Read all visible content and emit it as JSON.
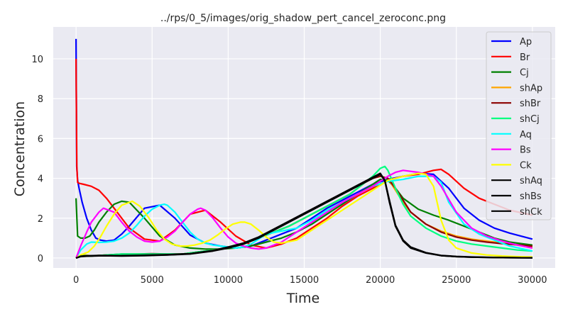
{
  "chart_data": {
    "type": "line",
    "title": "../rps/0_5/images/orig_shadow_pert_cancel_zeroconc.png",
    "xlabel": "Time",
    "ylabel": "Concentration",
    "xlim": [
      -1500,
      31500
    ],
    "ylim": [
      -0.5,
      11.6
    ],
    "xticks": [
      0,
      5000,
      10000,
      15000,
      20000,
      25000,
      30000
    ],
    "yticks": [
      0,
      2,
      4,
      6,
      8,
      10
    ],
    "grid": true,
    "legend_position": "top-right",
    "series": [
      {
        "name": "Ap",
        "color": "#0000ff",
        "x": [
          0,
          40,
          100,
          200,
          400,
          700,
          1000,
          1300,
          1600,
          2000,
          2500,
          3000,
          3500,
          4500,
          5500,
          6500,
          7500,
          8500,
          9500,
          10500,
          11500,
          12500,
          13500,
          14500,
          15500,
          16500,
          17500,
          18500,
          19500,
          20500,
          21500,
          22500,
          23500,
          24500,
          25500,
          26500,
          27500,
          28500,
          30000
        ],
        "y": [
          11.0,
          4.6,
          3.9,
          3.5,
          2.8,
          2.0,
          1.4,
          1.0,
          0.9,
          0.85,
          0.9,
          1.2,
          1.6,
          2.5,
          2.65,
          2.0,
          1.15,
          0.75,
          0.6,
          0.5,
          0.6,
          0.9,
          1.2,
          1.5,
          2.0,
          2.5,
          2.9,
          3.3,
          3.7,
          3.95,
          4.1,
          4.25,
          4.2,
          3.5,
          2.5,
          1.9,
          1.5,
          1.25,
          0.95
        ]
      },
      {
        "name": "Br",
        "color": "#ff0000",
        "x": [
          0,
          50,
          100,
          200,
          500,
          1000,
          1500,
          2000,
          2500,
          3000,
          3500,
          4500,
          5500,
          6500,
          7500,
          8500,
          9500,
          10500,
          11500,
          12500,
          13500,
          14500,
          15500,
          16500,
          17500,
          18500,
          19500,
          20500,
          21500,
          22500,
          23500,
          24000,
          24500,
          25500,
          26500,
          27500,
          28500,
          30000
        ],
        "y": [
          10.0,
          4.6,
          3.8,
          3.75,
          3.7,
          3.6,
          3.4,
          3.0,
          2.5,
          2.0,
          1.5,
          0.95,
          0.85,
          1.4,
          2.2,
          2.4,
          1.8,
          1.1,
          0.65,
          0.5,
          0.7,
          1.0,
          1.5,
          2.0,
          2.6,
          3.1,
          3.5,
          3.9,
          4.1,
          4.2,
          4.4,
          4.45,
          4.2,
          3.5,
          3.0,
          2.7,
          2.4,
          2.15
        ]
      },
      {
        "name": "Cj",
        "color": "#008000",
        "x": [
          0,
          100,
          300,
          600,
          900,
          1200,
          1500,
          2000,
          2500,
          3000,
          3500,
          4500,
          5500,
          6500,
          7500,
          8500,
          9500,
          10500,
          11500,
          12500,
          13500,
          14500,
          15500,
          16500,
          17500,
          18500,
          19500,
          20000,
          20500,
          21000,
          21500,
          22500,
          23500,
          24500,
          25500,
          26500,
          27500,
          28500,
          30000
        ],
        "y": [
          3.0,
          1.1,
          1.0,
          1.0,
          1.1,
          1.4,
          1.8,
          2.3,
          2.7,
          2.85,
          2.8,
          2.0,
          1.1,
          0.65,
          0.5,
          0.45,
          0.45,
          0.5,
          0.6,
          0.8,
          1.0,
          1.3,
          1.7,
          2.2,
          2.7,
          3.2,
          3.7,
          3.95,
          3.9,
          3.5,
          3.0,
          2.45,
          2.15,
          1.9,
          1.6,
          1.3,
          1.0,
          0.8,
          0.65
        ]
      },
      {
        "name": "shAp",
        "color": "#ffa500",
        "x": [
          0,
          300,
          600,
          1000,
          2000,
          3000,
          4000,
          5000,
          6000,
          7000,
          8000,
          9000,
          10000,
          11000,
          12000,
          13000,
          14000,
          15000,
          16000,
          17000,
          18000,
          18500,
          19000,
          19500,
          20000,
          20500,
          21000,
          21500,
          22000,
          23000,
          24000,
          25000,
          26000,
          27000,
          28000,
          29000,
          30000
        ],
        "y": [
          0.0,
          0.12,
          0.15,
          0.1,
          0.15,
          0.18,
          0.2,
          0.2,
          0.18,
          0.2,
          0.3,
          0.4,
          0.5,
          0.7,
          1.0,
          1.3,
          1.6,
          2.0,
          2.4,
          2.8,
          3.2,
          3.5,
          3.8,
          4.0,
          4.1,
          4.0,
          3.4,
          2.8,
          2.3,
          1.7,
          1.35,
          1.1,
          0.95,
          0.85,
          0.75,
          0.65,
          0.55
        ]
      },
      {
        "name": "shBr",
        "color": "#8b0000",
        "x": [
          0,
          300,
          600,
          1000,
          2000,
          3000,
          4000,
          5000,
          6000,
          7000,
          8000,
          9000,
          10000,
          11000,
          12000,
          13000,
          14000,
          15000,
          16000,
          17000,
          18000,
          18500,
          19000,
          19500,
          20000,
          20500,
          21000,
          21500,
          22000,
          23000,
          24000,
          25000,
          26000,
          27000,
          28000,
          29000,
          30000
        ],
        "y": [
          0.0,
          0.1,
          0.12,
          0.1,
          0.15,
          0.2,
          0.2,
          0.22,
          0.2,
          0.2,
          0.3,
          0.4,
          0.5,
          0.7,
          1.0,
          1.3,
          1.6,
          2.0,
          2.4,
          2.8,
          3.2,
          3.5,
          3.8,
          4.0,
          4.1,
          4.0,
          3.5,
          2.9,
          2.3,
          1.7,
          1.3,
          1.05,
          0.9,
          0.8,
          0.72,
          0.66,
          0.6
        ]
      },
      {
        "name": "shCj",
        "color": "#00ff7f",
        "x": [
          0,
          300,
          600,
          1000,
          2000,
          3000,
          4000,
          5000,
          6000,
          7000,
          8000,
          9000,
          10000,
          11000,
          12000,
          13000,
          14000,
          15000,
          16000,
          17000,
          18000,
          18500,
          19000,
          19500,
          20000,
          20300,
          20500,
          21000,
          21500,
          22000,
          23000,
          24000,
          25000,
          26000,
          27000,
          28000,
          29000,
          30000
        ],
        "y": [
          0.0,
          0.1,
          0.12,
          0.1,
          0.15,
          0.2,
          0.2,
          0.2,
          0.2,
          0.2,
          0.3,
          0.4,
          0.5,
          0.7,
          1.0,
          1.3,
          1.6,
          2.0,
          2.4,
          2.8,
          3.2,
          3.5,
          3.8,
          4.1,
          4.5,
          4.6,
          4.4,
          3.5,
          2.7,
          2.1,
          1.5,
          1.1,
          0.85,
          0.7,
          0.6,
          0.5,
          0.4,
          0.35
        ]
      },
      {
        "name": "Aq",
        "color": "#00ffff",
        "x": [
          0,
          300,
          700,
          1000,
          1500,
          2000,
          2500,
          3000,
          3500,
          4000,
          4500,
          5000,
          5500,
          5800,
          6000,
          6500,
          7000,
          7500,
          8000,
          8500,
          9000,
          9500,
          10000,
          10500,
          11000,
          11500,
          12000,
          12500,
          13500,
          14500,
          15500,
          16500,
          17500,
          18500,
          19500,
          20500,
          21500,
          22500,
          23500,
          24000,
          24500,
          25500,
          26500,
          27500,
          28500,
          30000
        ],
        "y": [
          0.0,
          0.4,
          0.7,
          0.8,
          0.78,
          0.8,
          0.85,
          1.0,
          1.25,
          1.65,
          2.1,
          2.45,
          2.65,
          2.7,
          2.65,
          2.3,
          1.8,
          1.3,
          0.95,
          0.75,
          0.65,
          0.6,
          0.55,
          0.5,
          0.55,
          0.7,
          0.95,
          1.2,
          1.35,
          1.5,
          1.9,
          2.4,
          2.8,
          3.2,
          3.6,
          3.85,
          3.95,
          4.1,
          4.1,
          3.8,
          2.8,
          1.7,
          1.2,
          0.9,
          0.6,
          0.35
        ]
      },
      {
        "name": "Bs",
        "color": "#ff00ff",
        "x": [
          0,
          300,
          700,
          1000,
          1500,
          1800,
          2500,
          3000,
          3500,
          4000,
          4500,
          5000,
          5500,
          6000,
          6500,
          7000,
          7500,
          8000,
          8200,
          8500,
          9000,
          9500,
          10000,
          10500,
          11000,
          11500,
          12000,
          12500,
          13500,
          14500,
          15500,
          16500,
          17500,
          18500,
          19500,
          20500,
          21000,
          21500,
          22500,
          23000,
          23500,
          24000,
          25000,
          26000,
          27000,
          28000,
          29000,
          30000
        ],
        "y": [
          0.0,
          0.6,
          1.3,
          1.8,
          2.3,
          2.5,
          2.3,
          1.8,
          1.35,
          1.05,
          0.85,
          0.8,
          0.85,
          1.05,
          1.35,
          1.8,
          2.2,
          2.45,
          2.5,
          2.4,
          2.0,
          1.5,
          1.05,
          0.75,
          0.6,
          0.5,
          0.45,
          0.5,
          0.8,
          1.3,
          1.8,
          2.3,
          2.8,
          3.2,
          3.6,
          4.1,
          4.3,
          4.4,
          4.3,
          4.2,
          4.1,
          3.6,
          2.3,
          1.5,
          1.1,
          0.85,
          0.65,
          0.5
        ]
      },
      {
        "name": "Ck",
        "color": "#ffff00",
        "x": [
          0,
          300,
          800,
          1200,
          1600,
          2000,
          2500,
          3000,
          3700,
          4200,
          4800,
          5300,
          5800,
          6300,
          6800,
          7300,
          7800,
          8300,
          8800,
          9300,
          9800,
          10300,
          10800,
          11100,
          11500,
          12000,
          12500,
          13000,
          13500,
          14500,
          15500,
          16500,
          17500,
          18500,
          19500,
          20500,
          21500,
          22500,
          23000,
          23500,
          24000,
          24500,
          25000,
          26000,
          27000,
          28000,
          29000,
          30000
        ],
        "y": [
          0.0,
          0.15,
          0.3,
          0.6,
          1.05,
          1.6,
          2.2,
          2.65,
          2.85,
          2.6,
          2.0,
          1.4,
          0.95,
          0.7,
          0.6,
          0.6,
          0.65,
          0.75,
          0.9,
          1.15,
          1.45,
          1.7,
          1.8,
          1.8,
          1.7,
          1.4,
          1.05,
          0.8,
          0.75,
          0.9,
          1.4,
          1.9,
          2.4,
          2.9,
          3.4,
          3.9,
          4.1,
          4.25,
          4.2,
          3.6,
          1.9,
          0.9,
          0.5,
          0.25,
          0.15,
          0.1,
          0.07,
          0.05
        ]
      },
      {
        "name": "shAq",
        "color": "#000000",
        "x": [
          0,
          300,
          700,
          1500,
          3000,
          4500,
          6000,
          7500,
          9000,
          10000,
          11000,
          12000,
          12500,
          13500,
          14500,
          15500,
          16500,
          17500,
          18500,
          19500,
          20000,
          20300,
          20600,
          21000,
          21500,
          22000,
          23000,
          24000,
          25000,
          26000,
          28000,
          30000
        ],
        "y": [
          0.0,
          0.08,
          0.1,
          0.12,
          0.1,
          0.12,
          0.15,
          0.2,
          0.35,
          0.5,
          0.7,
          1.0,
          1.2,
          1.6,
          2.0,
          2.4,
          2.8,
          3.2,
          3.6,
          4.0,
          4.2,
          3.9,
          2.8,
          1.6,
          0.85,
          0.5,
          0.25,
          0.12,
          0.07,
          0.04,
          0.02,
          0.01
        ]
      },
      {
        "name": "shBs",
        "color": "#000000",
        "x": [
          0,
          300,
          700,
          1500,
          3000,
          4500,
          6000,
          7500,
          9000,
          10000,
          11000,
          12000,
          12500,
          13500,
          14500,
          15500,
          16500,
          17500,
          18500,
          19500,
          20000,
          20300,
          20600,
          21000,
          21500,
          22000,
          23000,
          24000,
          25000,
          26000,
          28000,
          30000
        ],
        "y": [
          0.0,
          0.09,
          0.11,
          0.13,
          0.12,
          0.14,
          0.17,
          0.22,
          0.38,
          0.55,
          0.75,
          1.05,
          1.25,
          1.65,
          2.05,
          2.45,
          2.85,
          3.25,
          3.65,
          4.05,
          4.25,
          3.9,
          2.9,
          1.65,
          0.9,
          0.55,
          0.27,
          0.13,
          0.08,
          0.05,
          0.02,
          0.01
        ]
      },
      {
        "name": "shCk",
        "color": "#000000",
        "x": [
          0,
          300,
          700,
          1500,
          3000,
          4500,
          6000,
          7500,
          9000,
          10000,
          11000,
          12000,
          12500,
          13500,
          14500,
          15500,
          16500,
          17500,
          18500,
          19500,
          20000,
          20300,
          20600,
          21000,
          21500,
          22000,
          23000,
          24000,
          25000,
          26000,
          28000,
          30000
        ],
        "y": [
          0.0,
          0.07,
          0.09,
          0.11,
          0.11,
          0.13,
          0.16,
          0.21,
          0.36,
          0.52,
          0.72,
          1.02,
          1.22,
          1.62,
          2.02,
          2.42,
          2.82,
          3.22,
          3.62,
          4.02,
          4.22,
          3.88,
          2.85,
          1.6,
          0.88,
          0.52,
          0.26,
          0.12,
          0.07,
          0.04,
          0.02,
          0.01
        ]
      }
    ]
  }
}
